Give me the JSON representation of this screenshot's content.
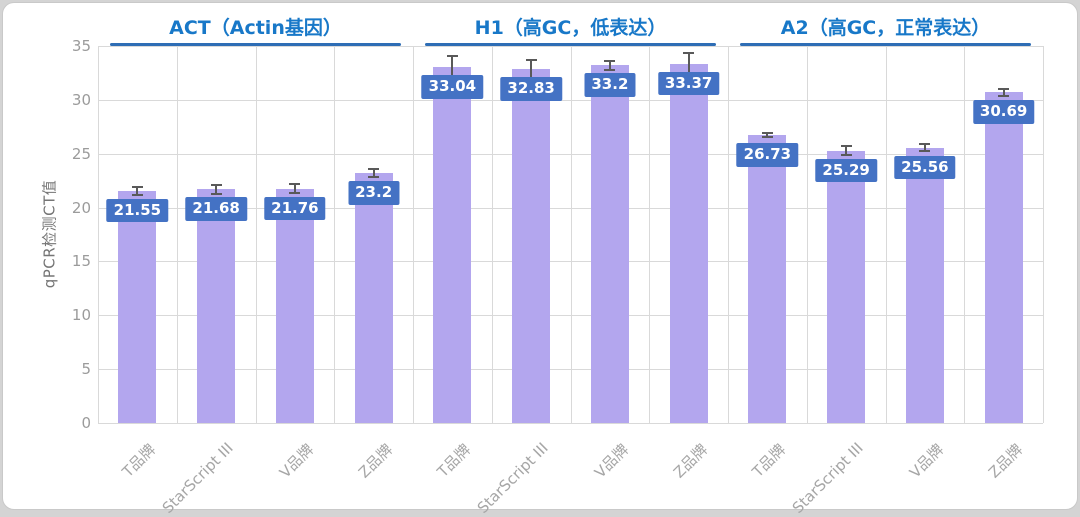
{
  "chart_data": {
    "type": "bar",
    "title": "",
    "ylabel": "qPCR检测CT值",
    "ylim": [
      0,
      35
    ],
    "ytick_step": 5,
    "yticks": [
      "0",
      "5",
      "10",
      "15",
      "20",
      "25",
      "30",
      "35"
    ],
    "grid": true,
    "legend": false,
    "groups": [
      {
        "label": "ACT（Actin基因）",
        "categories": [
          "T品牌",
          "StarScript III",
          "V品牌",
          "Z品牌"
        ],
        "values": [
          21.55,
          21.68,
          21.76,
          23.2
        ],
        "value_labels": [
          "21.55",
          "21.68",
          "21.76",
          "23.2"
        ],
        "errors": [
          0.4,
          0.4,
          0.4,
          0.35
        ]
      },
      {
        "label": "H1（高GC，低表达）",
        "categories": [
          "T品牌",
          "StarScript III",
          "V品牌",
          "Z品牌"
        ],
        "values": [
          33.04,
          32.83,
          33.2,
          33.37
        ],
        "value_labels": [
          "33.04",
          "32.83",
          "33.2",
          "33.37"
        ],
        "errors": [
          1.0,
          0.9,
          0.45,
          0.95
        ]
      },
      {
        "label": "A2（高GC，正常表达）",
        "categories": [
          "T品牌",
          "StarScript III",
          "V品牌",
          "Z品牌"
        ],
        "values": [
          26.73,
          25.29,
          25.56,
          30.69
        ],
        "value_labels": [
          "26.73",
          "25.29",
          "25.56",
          "30.69"
        ],
        "errors": [
          0.2,
          0.4,
          0.3,
          0.3
        ]
      }
    ],
    "colors": {
      "bar": "#b3a6ee",
      "label_box": "#4472c4",
      "label_text": "#ffffff",
      "header_text": "#1878c8",
      "header_line": "#2e6db5",
      "error_bar": "#595959",
      "grid": "#d9d9d9",
      "tick_text": "#9b9b9b",
      "axis_title_text": "#757575"
    }
  }
}
